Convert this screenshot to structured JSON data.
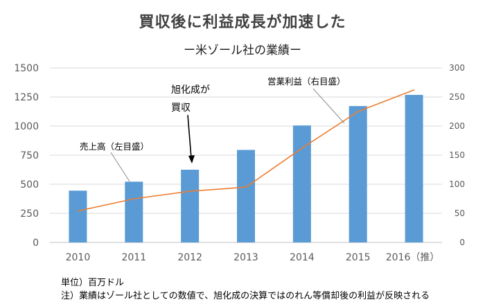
{
  "title": "買収後に利益成長が加速した",
  "subtitle": "ー米ゾール社の業績ー",
  "notes": {
    "unit": "単位）百万ドル",
    "footnote": "注）業績はゾール社としての数値で、旭化成の決算ではのれん等償却後の利益が反映される"
  },
  "chart_data": {
    "type": "bar",
    "categories": [
      "2010",
      "2011",
      "2012",
      "2013",
      "2014",
      "2015",
      "2016（推）"
    ],
    "series": [
      {
        "name": "売上高（左目盛）",
        "type": "bar",
        "axis": "left",
        "color": "#5b9bd5",
        "values": [
          445,
          522,
          625,
          795,
          1005,
          1172,
          1268
        ]
      },
      {
        "name": "営業利益（右目盛）",
        "type": "line",
        "axis": "right",
        "color": "#ed7d31",
        "values": [
          54,
          75,
          88,
          95,
          162,
          225,
          262
        ]
      }
    ],
    "y_left": {
      "ylim": [
        0,
        1500
      ],
      "ticks": [
        "0",
        "250",
        "500",
        "750",
        "1000",
        "1250",
        "1500"
      ]
    },
    "y_right": {
      "ylim": [
        0,
        300
      ],
      "ticks": [
        "0",
        "50",
        "100",
        "150",
        "200",
        "250",
        "300"
      ]
    },
    "grid": true,
    "annotation": {
      "text_line1": "旭化成が",
      "text_line2": "買収",
      "target": "2012"
    }
  }
}
